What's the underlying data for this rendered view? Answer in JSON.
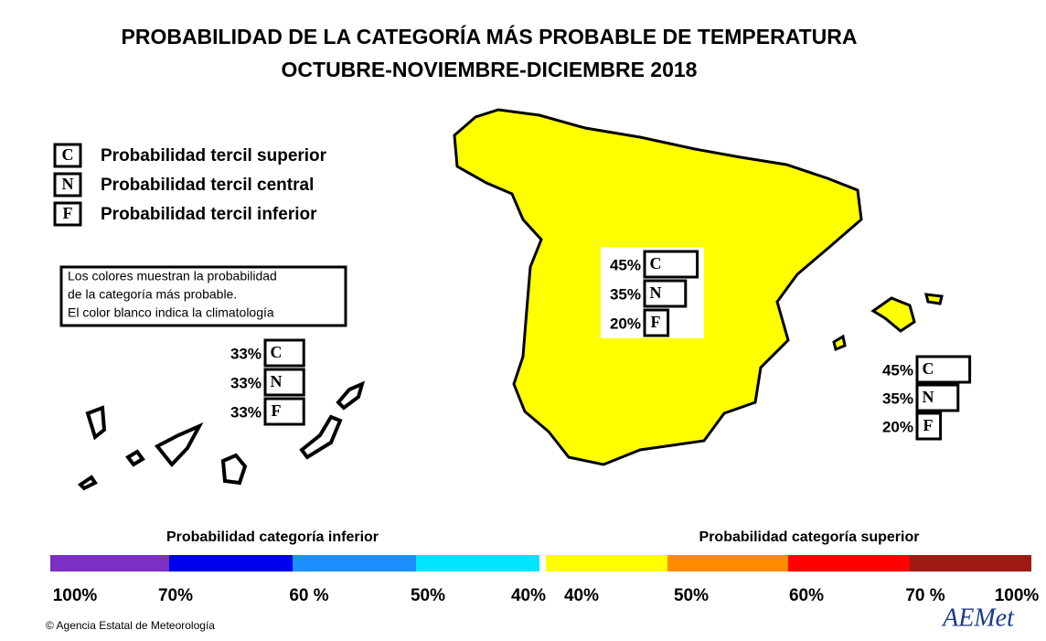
{
  "title": [
    "PROBABILIDAD DE LA CATEGORÍA MÁS PROBABLE DE TEMPERATURA",
    "OCTUBRE-NOVIEMBRE-DICIEMBRE 2018"
  ],
  "legend": [
    {
      "letter": "C",
      "text": "Probabilidad  tercil superior"
    },
    {
      "letter": "N",
      "text": "Probabilidad  tercil central"
    },
    {
      "letter": "F",
      "text": "Probabilidad  tercil inferior"
    }
  ],
  "note": [
    "Los colores muestran la probabilidad",
    "de la categoría más probable.",
    "El color blanco indica la climatología"
  ],
  "regions": [
    {
      "boxes": [
        {
          "value": 33,
          "label": "33%",
          "letter": "C"
        },
        {
          "value": 33,
          "label": "33%",
          "letter": "N"
        },
        {
          "value": 33,
          "label": "33%",
          "letter": "F"
        }
      ],
      "color": "#ffffff"
    },
    {
      "boxes": [
        {
          "value": 45,
          "label": "45%",
          "letter": "C"
        },
        {
          "value": 35,
          "label": "35%",
          "letter": "N"
        },
        {
          "value": 20,
          "label": "20%",
          "letter": "F"
        }
      ],
      "color": "#ffff00"
    },
    {
      "boxes": [
        {
          "value": 45,
          "label": "45%",
          "letter": "C"
        },
        {
          "value": 35,
          "label": "35%",
          "letter": "N"
        },
        {
          "value": 20,
          "label": "20%",
          "letter": "F"
        }
      ],
      "color": "#ffff00"
    }
  ],
  "scale": {
    "lower_title": "Probabilidad categoría inferior",
    "upper_title": "Probabilidad categoría superior",
    "colors": [
      "#7b2fc4",
      "#0000ee",
      "#1e8fff",
      "#00e5ff",
      "#ffff00",
      "#ff8c00",
      "#ff0000",
      "#9e1a12"
    ],
    "labels": [
      "100%",
      "70%",
      "60 %",
      "50%",
      "40%",
      "40%",
      "50%",
      "60%",
      "70 %",
      "100%"
    ]
  },
  "footer": "© Agencia Estatal de Meteorología",
  "logo": "AEMet"
}
